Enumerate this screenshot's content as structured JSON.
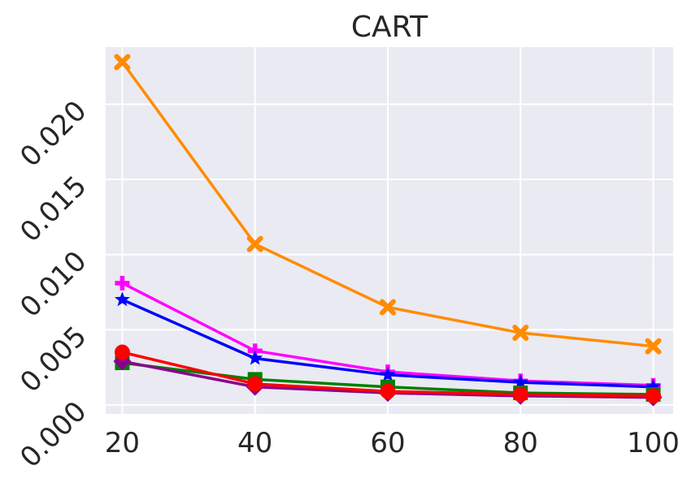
{
  "chart_data": {
    "type": "line",
    "title": "CART",
    "xlabel": "",
    "ylabel": "",
    "x": [
      20,
      40,
      60,
      80,
      100
    ],
    "xlim": [
      17.5,
      103
    ],
    "ylim": [
      -0.0006,
      0.0238
    ],
    "x_ticks": [
      "20",
      "40",
      "60",
      "80",
      "100"
    ],
    "y_ticks": [
      "0.000",
      "0.005",
      "0.010",
      "0.015",
      "0.020"
    ],
    "y_tick_values": [
      0.0,
      0.005,
      0.01,
      0.015,
      0.02
    ],
    "grid": true,
    "background": "#EAEAF2",
    "series": [
      {
        "color": "#FF8C00",
        "marker": "x",
        "values": [
          0.0228,
          0.0107,
          0.0065,
          0.0048,
          0.0039
        ]
      },
      {
        "color": "#FF00FF",
        "marker": "plus",
        "values": [
          0.0081,
          0.0036,
          0.0022,
          0.0016,
          0.0013
        ]
      },
      {
        "color": "#0000FF",
        "marker": "star",
        "values": [
          0.007,
          0.0031,
          0.002,
          0.0015,
          0.0012
        ]
      },
      {
        "color": "#008000",
        "marker": "square",
        "values": [
          0.0028,
          0.0017,
          0.0012,
          0.0008,
          0.0007
        ]
      },
      {
        "color": "#8B008B",
        "marker": "diamond",
        "values": [
          0.0029,
          0.0012,
          0.0008,
          0.0006,
          0.0005
        ]
      },
      {
        "color": "#FF0000",
        "marker": "circle",
        "values": [
          0.0035,
          0.0014,
          0.0009,
          0.0007,
          0.0006
        ]
      }
    ]
  }
}
